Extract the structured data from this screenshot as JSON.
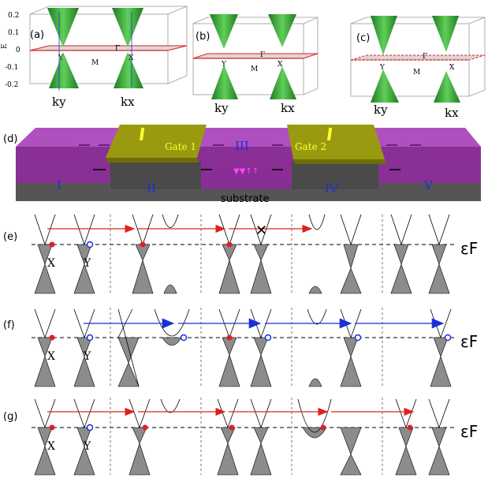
{
  "top_panels": [
    {
      "label": "(a)",
      "gamma": "Γ",
      "m": "M",
      "x": "X",
      "y": "Y",
      "ky": "ky",
      "kx": "kx"
    },
    {
      "label": "(b)",
      "gamma": "Γ",
      "m": "M",
      "x": "X",
      "y": "Y",
      "ky": "ky",
      "kx": "kx"
    },
    {
      "label": "(c)",
      "gamma": "Γ",
      "m": "M",
      "x": "X",
      "y": "Y",
      "ky": "ky",
      "kx": "kx"
    }
  ],
  "energy_axis": {
    "label": "E",
    "ticks": [
      "0.2",
      "0.1",
      "0",
      "-0.1",
      "-0.2"
    ]
  },
  "device": {
    "label": "(d)",
    "gate1": "Gate 1",
    "gate2": "Gate 2",
    "regions": [
      "I",
      "II",
      "III",
      "IV",
      "V"
    ],
    "substrate": "substrate"
  },
  "band_rows": [
    {
      "label": "(e)",
      "ef": "εF",
      "x": "X",
      "y": "Y"
    },
    {
      "label": "(f)",
      "ef": "εF",
      "x": "X",
      "y": "Y"
    },
    {
      "label": "(g)",
      "ef": "εF",
      "x": "X",
      "y": "Y"
    }
  ],
  "colors": {
    "green": "#2e9b33",
    "magenta": "#a23bb0",
    "gate": "#9a9a10",
    "red": "#e02020",
    "blue": "#1a2fd8",
    "gray": "#8c8c8c"
  }
}
